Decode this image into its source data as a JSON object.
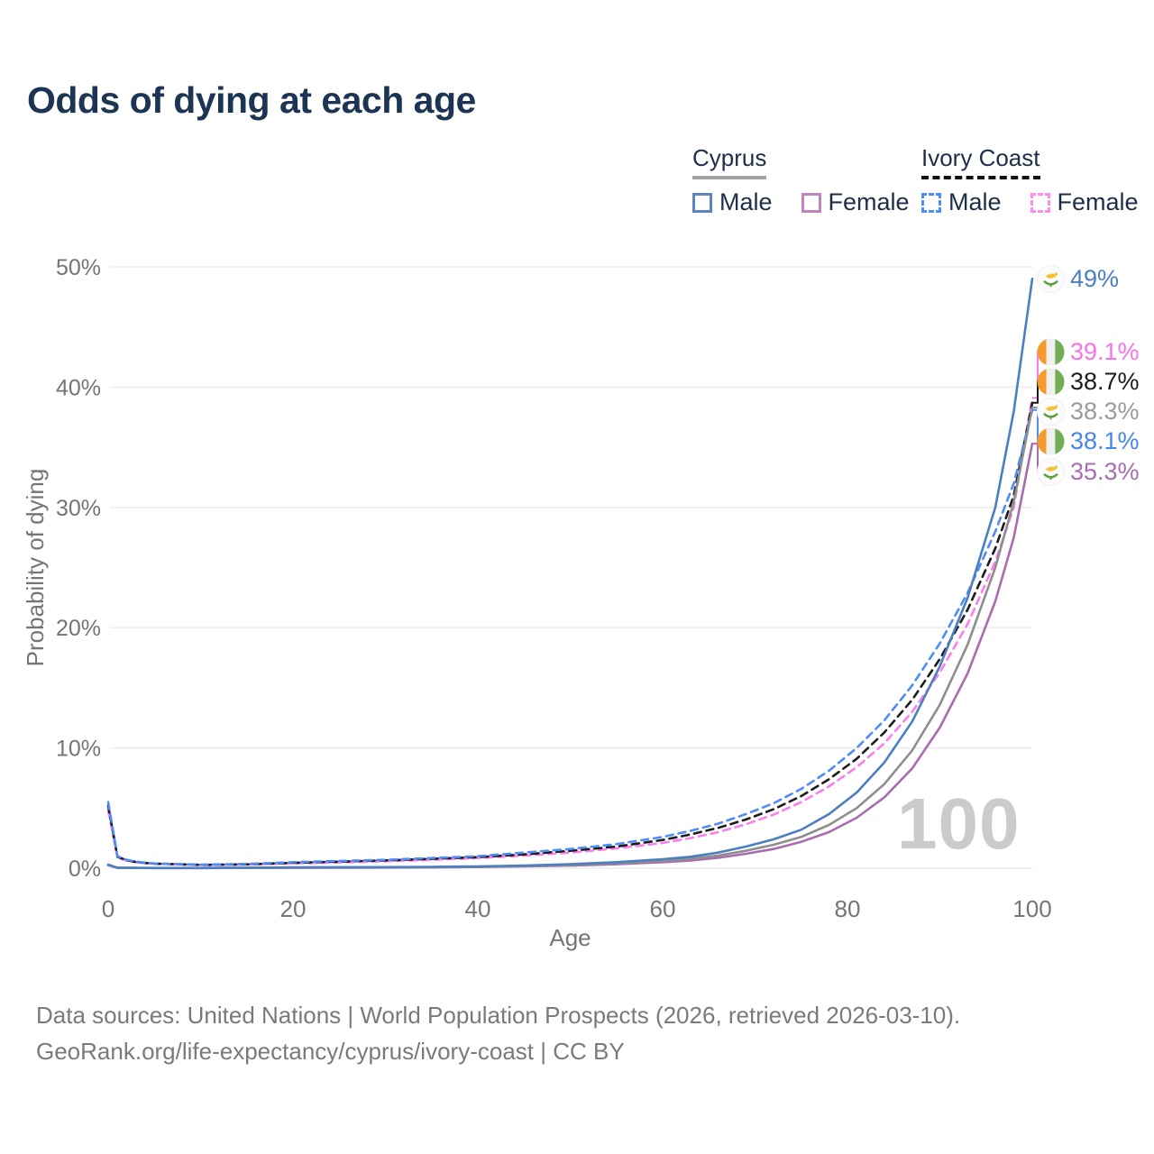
{
  "title": "Odds of dying at each age",
  "legend": {
    "cyprus": {
      "label": "Cyprus",
      "male": "Male",
      "female": "Female"
    },
    "ivory_coast": {
      "label": "Ivory Coast",
      "male": "Male",
      "female": "Female"
    }
  },
  "watermark": "100",
  "footer": {
    "line1": "Data sources: United Nations | World Population Prospects (2026, retrieved 2026-03-10).",
    "line2": "GeoRank.org/life-expectancy/cyprus/ivory-coast | CC BY"
  },
  "chart_data": {
    "type": "line",
    "title": "Odds of dying at each age",
    "xlabel": "Age",
    "ylabel": "Probability of dying",
    "xlim": [
      0,
      100
    ],
    "ylim": [
      0,
      50
    ],
    "grid": true,
    "x_ticks": [
      0,
      20,
      40,
      60,
      80,
      100
    ],
    "y_ticks": [
      "0%",
      "10%",
      "20%",
      "30%",
      "40%",
      "50%"
    ],
    "x": [
      0,
      1,
      2,
      3,
      4,
      5,
      10,
      15,
      20,
      25,
      30,
      35,
      40,
      45,
      50,
      55,
      60,
      63,
      66,
      69,
      72,
      75,
      78,
      81,
      84,
      87,
      90,
      93,
      96,
      98,
      100
    ],
    "series": [
      {
        "key": "cyprus-male",
        "name": "Cyprus Male",
        "country": "Cyprus",
        "sex": "Male",
        "style": "solid",
        "color": "#4b7fc2",
        "end_value_pct": 49,
        "values": [
          0.3,
          0.04,
          0.03,
          0.025,
          0.022,
          0.02,
          0.02,
          0.04,
          0.07,
          0.08,
          0.09,
          0.11,
          0.15,
          0.22,
          0.33,
          0.5,
          0.75,
          0.95,
          1.3,
          1.8,
          2.4,
          3.2,
          4.5,
          6.3,
          8.8,
          12.2,
          16.8,
          22.5,
          30,
          38,
          49
        ]
      },
      {
        "key": "cyprus-all",
        "name": "Cyprus Both sexes",
        "country": "Cyprus",
        "sex": "Both",
        "style": "solid",
        "color": "#8e8e8e",
        "end_value_pct": 38.3,
        "values": [
          0.28,
          0.035,
          0.027,
          0.022,
          0.02,
          0.018,
          0.017,
          0.03,
          0.05,
          0.06,
          0.07,
          0.09,
          0.12,
          0.18,
          0.27,
          0.41,
          0.62,
          0.78,
          1.05,
          1.45,
          1.95,
          2.6,
          3.6,
          5.0,
          7.0,
          9.8,
          13.6,
          18.6,
          25,
          30.5,
          38.3
        ]
      },
      {
        "key": "cyprus-female",
        "name": "Cyprus Female",
        "country": "Cyprus",
        "sex": "Female",
        "style": "solid",
        "color": "#a96cb0",
        "end_value_pct": 35.3,
        "values": [
          0.25,
          0.03,
          0.024,
          0.02,
          0.017,
          0.015,
          0.014,
          0.02,
          0.03,
          0.04,
          0.05,
          0.07,
          0.1,
          0.15,
          0.22,
          0.33,
          0.5,
          0.64,
          0.86,
          1.2,
          1.6,
          2.2,
          3.0,
          4.2,
          5.9,
          8.3,
          11.7,
          16.2,
          22.2,
          27.5,
          35.3
        ]
      },
      {
        "key": "ivory-coast-male",
        "name": "Ivory Coast Male",
        "country": "Ivory Coast",
        "sex": "Male",
        "style": "dashed",
        "color": "#4f8cf7",
        "end_value_pct": 38.1,
        "values": [
          5.5,
          1.0,
          0.7,
          0.55,
          0.46,
          0.4,
          0.3,
          0.35,
          0.5,
          0.6,
          0.7,
          0.85,
          1.0,
          1.3,
          1.6,
          2.0,
          2.6,
          3.1,
          3.7,
          4.5,
          5.4,
          6.6,
          8.1,
          10.0,
          12.3,
          15.2,
          18.7,
          22.9,
          28,
          32,
          38.1
        ]
      },
      {
        "key": "ivory-coast-all",
        "name": "Ivory Coast Both sexes",
        "country": "Ivory Coast",
        "sex": "Both",
        "style": "dashed",
        "color": "#1c1c1c",
        "end_value_pct": 38.7,
        "values": [
          5.2,
          0.95,
          0.66,
          0.52,
          0.44,
          0.38,
          0.28,
          0.32,
          0.45,
          0.55,
          0.65,
          0.78,
          0.92,
          1.15,
          1.45,
          1.8,
          2.35,
          2.8,
          3.35,
          4.05,
          4.9,
          6.0,
          7.4,
          9.1,
          11.3,
          14.0,
          17.4,
          21.5,
          26.6,
          31,
          38.7
        ]
      },
      {
        "key": "ivory-coast-female",
        "name": "Ivory Coast Female",
        "country": "Ivory Coast",
        "sex": "Female",
        "style": "dashed",
        "color": "#fc7ded",
        "end_value_pct": 39.1,
        "values": [
          4.8,
          0.9,
          0.62,
          0.49,
          0.42,
          0.36,
          0.26,
          0.3,
          0.4,
          0.48,
          0.58,
          0.7,
          0.85,
          1.05,
          1.3,
          1.65,
          2.1,
          2.5,
          3.0,
          3.65,
          4.45,
          5.5,
          6.8,
          8.4,
          10.4,
          13.0,
          16.3,
          20.3,
          25.5,
          30,
          39.1
        ]
      }
    ],
    "end_labels": [
      {
        "text": "49%",
        "series": "cyprus-male",
        "flag": "cyprus",
        "color": "#4b7fc2",
        "attached": true
      },
      {
        "text": "39.1%",
        "series": "ivory-coast-female",
        "flag": "ivory-coast",
        "color": "#f872e6"
      },
      {
        "text": "38.7%",
        "series": "ivory-coast-all",
        "flag": "ivory-coast",
        "color": "#1c1c1c"
      },
      {
        "text": "38.3%",
        "series": "cyprus-all",
        "flag": "cyprus",
        "color": "#9a9a9a"
      },
      {
        "text": "38.1%",
        "series": "ivory-coast-male",
        "flag": "ivory-coast",
        "color": "#4586e8"
      },
      {
        "text": "35.3%",
        "series": "cyprus-female",
        "flag": "cyprus",
        "color": "#a96cb0"
      }
    ],
    "legend_position": "top-right"
  },
  "colors": {
    "title": "#1c3553",
    "axis_text": "#757575",
    "gridline": "#ececec",
    "watermark": "#cbcbcb",
    "footer_text": "#7a7a7a"
  },
  "icons": {
    "cyprus_flag": "cyprus-flag-icon",
    "ivory_coast_flag": "ivory-coast-flag-icon"
  }
}
